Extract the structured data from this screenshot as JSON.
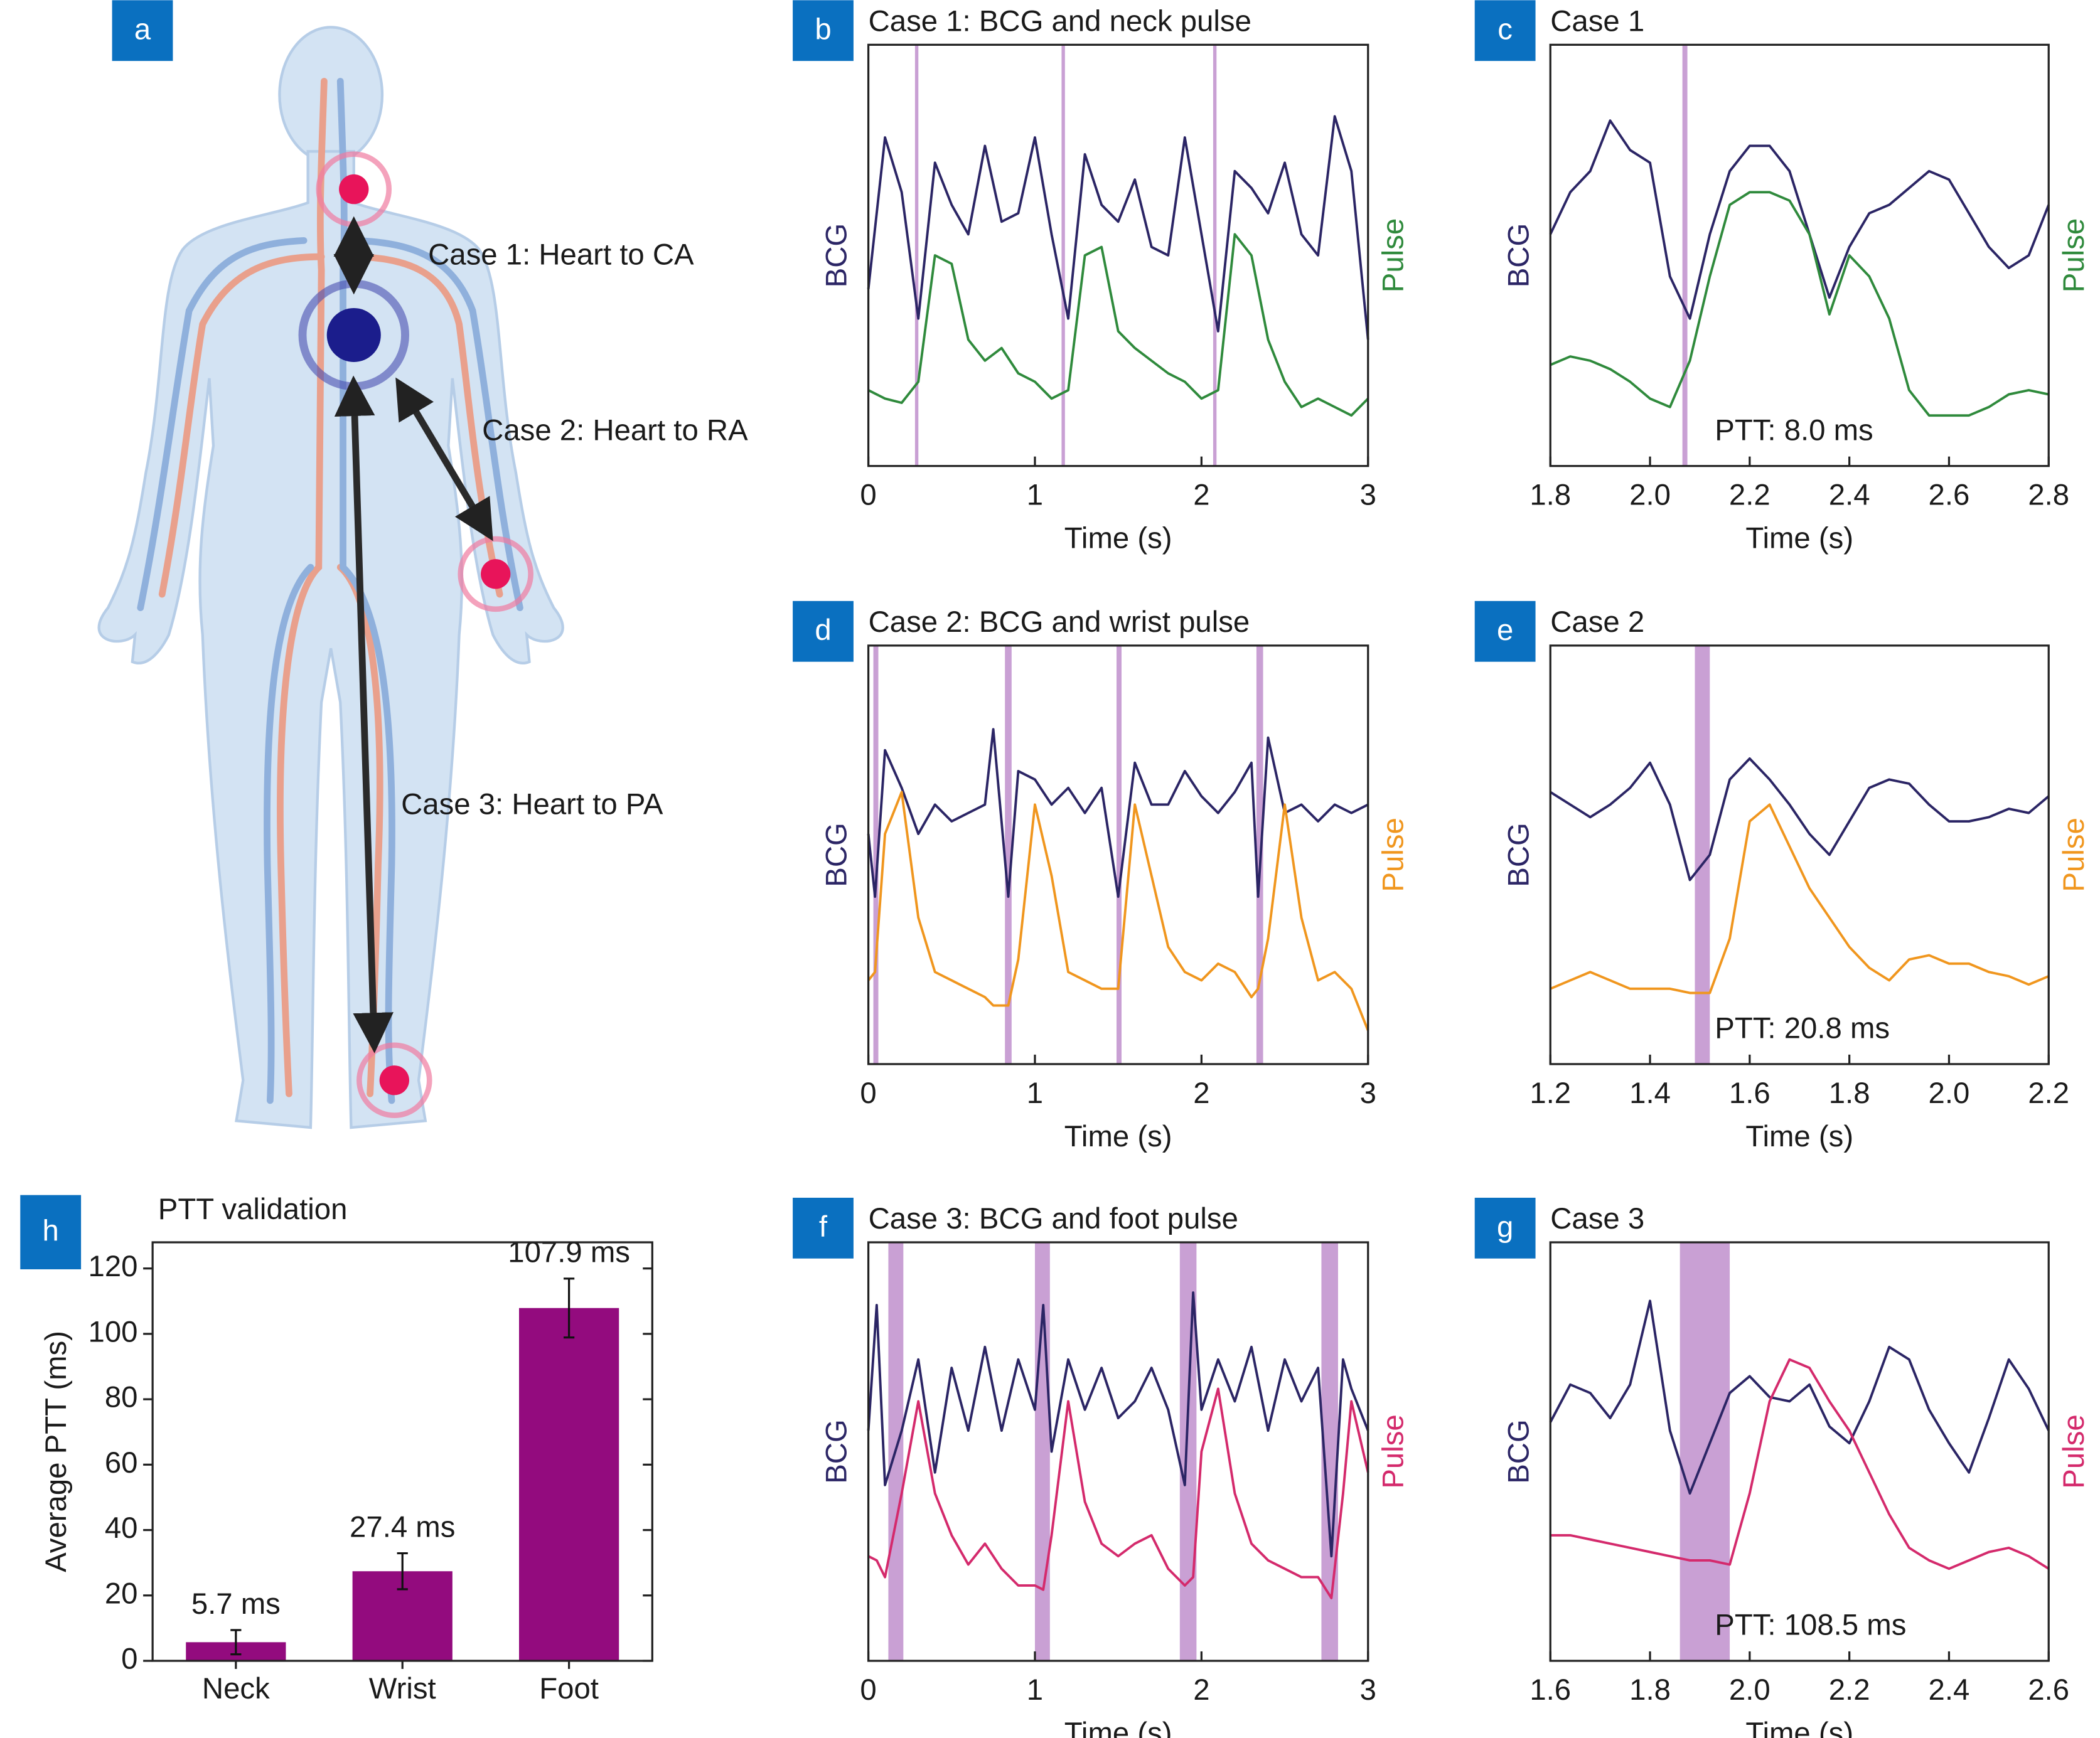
{
  "diagram": {
    "panel": "a",
    "labels": [
      "Case 1: Heart to CA",
      "Case 2: Heart to RA",
      "Case 3: Heart to PA"
    ]
  },
  "chart_data": [
    {
      "panel": "b",
      "type": "line",
      "title": "Case 1: BCG and neck pulse",
      "xlabel": "Time (s)",
      "ylabel": "BCG",
      "y2label": "Pulse",
      "x": [
        0,
        0.1,
        0.2,
        0.3,
        0.4,
        0.5,
        0.6,
        0.7,
        0.8,
        0.9,
        1.0,
        1.1,
        1.2,
        1.3,
        1.4,
        1.5,
        1.6,
        1.7,
        1.8,
        1.9,
        2.0,
        2.1,
        2.2,
        2.3,
        2.4,
        2.5,
        2.6,
        2.7,
        2.8,
        2.9,
        3.0
      ],
      "series": [
        {
          "color": "#2b2565",
          "values": [
            0.42,
            0.78,
            0.65,
            0.35,
            0.72,
            0.62,
            0.55,
            0.76,
            0.58,
            0.6,
            0.78,
            0.55,
            0.35,
            0.74,
            0.62,
            0.58,
            0.68,
            0.52,
            0.5,
            0.78,
            0.55,
            0.32,
            0.7,
            0.66,
            0.6,
            0.72,
            0.55,
            0.5,
            0.83,
            0.7,
            0.3
          ]
        },
        {
          "color": "#2f8a3c",
          "axis": "y2",
          "values": [
            0.18,
            0.16,
            0.15,
            0.2,
            0.5,
            0.48,
            0.3,
            0.25,
            0.28,
            0.22,
            0.2,
            0.16,
            0.18,
            0.5,
            0.52,
            0.32,
            0.28,
            0.25,
            0.22,
            0.2,
            0.16,
            0.18,
            0.55,
            0.5,
            0.3,
            0.2,
            0.14,
            0.16,
            0.14,
            0.12,
            0.16
          ]
        }
      ],
      "xlim": [
        0,
        3
      ],
      "xticks": [
        0,
        1,
        2,
        3
      ],
      "ylim": [
        0,
        1
      ],
      "y2lim": [
        0,
        1
      ],
      "spans": [
        [
          0.28,
          0.29
        ],
        [
          1.16,
          1.17
        ],
        [
          2.07,
          2.08
        ]
      ],
      "span_color": "#c9a0d4"
    },
    {
      "panel": "c",
      "type": "line",
      "title": "Case 1",
      "xlabel": "Time (s)",
      "ylabel": "BCG",
      "y2label": "Pulse",
      "annotation": "PTT: 8.0 ms",
      "x": [
        1.8,
        1.84,
        1.88,
        1.92,
        1.96,
        2.0,
        2.04,
        2.08,
        2.12,
        2.16,
        2.2,
        2.24,
        2.28,
        2.32,
        2.36,
        2.4,
        2.44,
        2.48,
        2.52,
        2.56,
        2.6,
        2.64,
        2.68,
        2.72,
        2.76,
        2.8
      ],
      "series": [
        {
          "color": "#2b2565",
          "values": [
            0.55,
            0.65,
            0.7,
            0.82,
            0.75,
            0.72,
            0.45,
            0.35,
            0.55,
            0.7,
            0.76,
            0.76,
            0.7,
            0.55,
            0.4,
            0.52,
            0.6,
            0.62,
            0.66,
            0.7,
            0.68,
            0.6,
            0.52,
            0.47,
            0.5,
            0.62
          ]
        },
        {
          "color": "#2f8a3c",
          "axis": "y2",
          "values": [
            0.24,
            0.26,
            0.25,
            0.23,
            0.2,
            0.16,
            0.14,
            0.25,
            0.45,
            0.62,
            0.65,
            0.65,
            0.63,
            0.55,
            0.36,
            0.5,
            0.45,
            0.35,
            0.18,
            0.12,
            0.12,
            0.12,
            0.14,
            0.17,
            0.18,
            0.17
          ]
        }
      ],
      "xlim": [
        1.8,
        2.8
      ],
      "xticks": [
        1.8,
        {
          "value": 2,
          "label": "2.0"
        },
        2.2,
        2.4,
        2.6,
        2.8
      ],
      "ylim": [
        0,
        1
      ],
      "y2lim": [
        0,
        1
      ],
      "spans": [
        [
          2.065,
          2.075
        ]
      ],
      "span_color": "#c9a0d4"
    },
    {
      "panel": "d",
      "type": "line",
      "title": "Case 2: BCG and wrist pulse",
      "xlabel": "Time (s)",
      "ylabel": "BCG",
      "y2label": "Pulse",
      "x": [
        0,
        0.04,
        0.1,
        0.2,
        0.3,
        0.4,
        0.5,
        0.6,
        0.7,
        0.75,
        0.84,
        0.9,
        1.0,
        1.1,
        1.2,
        1.3,
        1.4,
        1.5,
        1.6,
        1.7,
        1.8,
        1.9,
        2.0,
        2.1,
        2.2,
        2.3,
        2.34,
        2.4,
        2.5,
        2.6,
        2.7,
        2.8,
        2.9,
        3.0
      ],
      "series": [
        {
          "color": "#2b2565",
          "values": [
            0.55,
            0.4,
            0.75,
            0.66,
            0.55,
            0.62,
            0.58,
            0.6,
            0.62,
            0.8,
            0.4,
            0.7,
            0.68,
            0.62,
            0.66,
            0.6,
            0.66,
            0.4,
            0.72,
            0.62,
            0.62,
            0.7,
            0.64,
            0.6,
            0.65,
            0.72,
            0.4,
            0.78,
            0.6,
            0.62,
            0.58,
            0.62,
            0.6,
            0.62
          ]
        },
        {
          "color": "#f0961e",
          "axis": "y2",
          "values": [
            0.2,
            0.22,
            0.55,
            0.65,
            0.35,
            0.22,
            0.2,
            0.18,
            0.16,
            0.14,
            0.14,
            0.25,
            0.62,
            0.45,
            0.22,
            0.2,
            0.18,
            0.18,
            0.62,
            0.45,
            0.28,
            0.22,
            0.2,
            0.24,
            0.22,
            0.16,
            0.18,
            0.3,
            0.62,
            0.35,
            0.2,
            0.22,
            0.18,
            0.08
          ]
        }
      ],
      "xlim": [
        0,
        3
      ],
      "xticks": [
        0,
        1,
        2,
        3
      ],
      "ylim": [
        0,
        1
      ],
      "y2lim": [
        0,
        1
      ],
      "spans": [
        [
          0.03,
          0.06
        ],
        [
          0.82,
          0.86
        ],
        [
          1.49,
          1.52
        ],
        [
          2.33,
          2.37
        ]
      ],
      "span_color": "#c9a0d4"
    },
    {
      "panel": "e",
      "type": "line",
      "title": "Case 2",
      "xlabel": "Time (s)",
      "ylabel": "BCG",
      "y2label": "Pulse",
      "annotation": "PTT: 20.8 ms",
      "x": [
        1.2,
        1.24,
        1.28,
        1.32,
        1.36,
        1.4,
        1.44,
        1.48,
        1.52,
        1.56,
        1.6,
        1.64,
        1.68,
        1.72,
        1.76,
        1.8,
        1.84,
        1.88,
        1.92,
        1.96,
        2.0,
        2.04,
        2.08,
        2.12,
        2.16,
        2.2
      ],
      "series": [
        {
          "color": "#2b2565",
          "values": [
            0.65,
            0.62,
            0.59,
            0.62,
            0.66,
            0.72,
            0.62,
            0.44,
            0.5,
            0.68,
            0.73,
            0.68,
            0.62,
            0.55,
            0.5,
            0.58,
            0.66,
            0.68,
            0.67,
            0.62,
            0.58,
            0.58,
            0.59,
            0.61,
            0.6,
            0.64
          ]
        },
        {
          "color": "#f0961e",
          "axis": "y2",
          "values": [
            0.18,
            0.2,
            0.22,
            0.2,
            0.18,
            0.18,
            0.18,
            0.17,
            0.17,
            0.3,
            0.58,
            0.62,
            0.52,
            0.42,
            0.35,
            0.28,
            0.23,
            0.2,
            0.25,
            0.26,
            0.24,
            0.24,
            0.22,
            0.21,
            0.19,
            0.21
          ]
        }
      ],
      "xlim": [
        1.2,
        2.2
      ],
      "xticks": [
        1.2,
        1.4,
        1.6,
        1.8,
        {
          "value": 2,
          "label": "2.0"
        },
        2.2
      ],
      "ylim": [
        0,
        1
      ],
      "y2lim": [
        0,
        1
      ],
      "spans": [
        [
          1.49,
          1.52
        ]
      ],
      "span_color": "#c9a0d4"
    },
    {
      "panel": "f",
      "type": "line",
      "title": "Case 3: BCG and foot pulse",
      "xlabel": "Time (s)",
      "ylabel": "BCG",
      "y2label": "Pulse",
      "x": [
        0,
        0.05,
        0.1,
        0.2,
        0.3,
        0.4,
        0.5,
        0.6,
        0.7,
        0.8,
        0.9,
        1.0,
        1.05,
        1.1,
        1.2,
        1.3,
        1.4,
        1.5,
        1.6,
        1.7,
        1.8,
        1.9,
        1.95,
        2.0,
        2.1,
        2.2,
        2.3,
        2.4,
        2.5,
        2.6,
        2.7,
        2.78,
        2.85,
        2.9,
        3.0
      ],
      "series": [
        {
          "color": "#2b2565",
          "values": [
            0.55,
            0.85,
            0.42,
            0.55,
            0.72,
            0.45,
            0.7,
            0.55,
            0.75,
            0.55,
            0.72,
            0.6,
            0.85,
            0.5,
            0.72,
            0.6,
            0.7,
            0.58,
            0.62,
            0.7,
            0.6,
            0.42,
            0.88,
            0.6,
            0.72,
            0.62,
            0.75,
            0.55,
            0.72,
            0.62,
            0.7,
            0.25,
            0.72,
            0.65,
            0.55
          ]
        },
        {
          "color": "#d42a6c",
          "axis": "y2",
          "values": [
            0.25,
            0.24,
            0.2,
            0.4,
            0.62,
            0.4,
            0.3,
            0.23,
            0.28,
            0.22,
            0.18,
            0.18,
            0.17,
            0.3,
            0.62,
            0.38,
            0.28,
            0.25,
            0.28,
            0.3,
            0.22,
            0.18,
            0.2,
            0.5,
            0.65,
            0.4,
            0.28,
            0.24,
            0.22,
            0.2,
            0.2,
            0.15,
            0.4,
            0.62,
            0.45
          ]
        }
      ],
      "xlim": [
        0,
        3
      ],
      "xticks": [
        0,
        1,
        2,
        3
      ],
      "ylim": [
        0,
        1
      ],
      "y2lim": [
        0,
        1
      ],
      "spans": [
        [
          0.12,
          0.21
        ],
        [
          1.0,
          1.09
        ],
        [
          1.87,
          1.97
        ],
        [
          2.72,
          2.82
        ]
      ],
      "span_color": "#c9a0d4"
    },
    {
      "panel": "g",
      "type": "line",
      "title": "Case 3",
      "xlabel": "Time (s)",
      "ylabel": "BCG",
      "y2label": "Pulse",
      "annotation": "PTT: 108.5 ms",
      "x": [
        1.6,
        1.64,
        1.68,
        1.72,
        1.76,
        1.8,
        1.84,
        1.88,
        1.92,
        1.96,
        2.0,
        2.04,
        2.08,
        2.12,
        2.16,
        2.2,
        2.24,
        2.28,
        2.32,
        2.36,
        2.4,
        2.44,
        2.48,
        2.52,
        2.56,
        2.6
      ],
      "series": [
        {
          "color": "#2b2565",
          "values": [
            0.57,
            0.66,
            0.64,
            0.58,
            0.66,
            0.86,
            0.55,
            0.4,
            0.52,
            0.64,
            0.68,
            0.63,
            0.62,
            0.66,
            0.56,
            0.52,
            0.62,
            0.75,
            0.72,
            0.6,
            0.52,
            0.45,
            0.58,
            0.72,
            0.65,
            0.55
          ]
        },
        {
          "color": "#d42a6c",
          "axis": "y2",
          "values": [
            0.3,
            0.3,
            0.29,
            0.28,
            0.27,
            0.26,
            0.25,
            0.24,
            0.24,
            0.23,
            0.4,
            0.62,
            0.72,
            0.7,
            0.62,
            0.55,
            0.45,
            0.35,
            0.27,
            0.24,
            0.22,
            0.24,
            0.26,
            0.27,
            0.25,
            0.22
          ]
        }
      ],
      "xlim": [
        1.6,
        2.6
      ],
      "xticks": [
        1.6,
        1.8,
        {
          "value": 2,
          "label": "2.0"
        },
        2.2,
        2.4,
        2.6
      ],
      "ylim": [
        0,
        1
      ],
      "y2lim": [
        0,
        1
      ],
      "spans": [
        [
          1.86,
          1.96
        ]
      ],
      "span_color": "#c9a0d4"
    },
    {
      "panel": "h",
      "type": "bar",
      "title": "PTT validation",
      "ylabel": "Average PTT (ms)",
      "categories": [
        "Neck",
        "Wrist",
        "Foot"
      ],
      "values": [
        5.7,
        27.4,
        107.9
      ],
      "errors": [
        3.7,
        5.5,
        9
      ],
      "value_labels": [
        "5.7 ms",
        "27.4 ms",
        "107.9 ms"
      ],
      "color": "#930b7e",
      "ylim": [
        0,
        128
      ],
      "yticks": [
        0,
        20,
        40,
        60,
        80,
        100,
        120
      ]
    }
  ]
}
